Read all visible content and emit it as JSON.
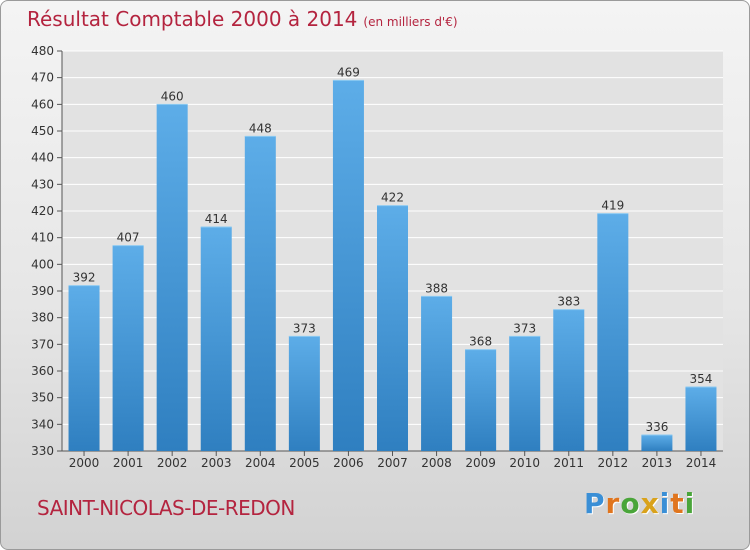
{
  "title": "Résultat Comptable 2000 à 2014",
  "subtitle": "(en milliers d'€)",
  "commune": "SAINT-NICOLAS-DE-REDON",
  "logo": {
    "text": "Proxiti",
    "letters": [
      {
        "char": "P",
        "color": "#3a8fd6"
      },
      {
        "char": "r",
        "color": "#e0751e"
      },
      {
        "char": "o",
        "color": "#4aa53a"
      },
      {
        "char": "x",
        "color": "#d9a21b"
      },
      {
        "char": "i",
        "color": "#3a8fd6"
      },
      {
        "char": "t",
        "color": "#e0751e"
      },
      {
        "char": "i",
        "color": "#4aa53a"
      }
    ]
  },
  "colors": {
    "title": "#b4243f",
    "bar_light": "#5dade8",
    "bar_dark": "#2f7fc0",
    "grid": "#ffffff",
    "text": "#333333"
  },
  "chart_data": {
    "type": "bar",
    "categories": [
      "2000",
      "2001",
      "2002",
      "2003",
      "2004",
      "2005",
      "2006",
      "2007",
      "2008",
      "2009",
      "2010",
      "2011",
      "2012",
      "2013",
      "2014"
    ],
    "values": [
      392,
      407,
      460,
      414,
      448,
      373,
      469,
      422,
      388,
      368,
      373,
      383,
      419,
      336,
      354
    ],
    "data_labels": [
      "392",
      "407",
      "460",
      "414",
      "448",
      "373",
      "469",
      "422",
      "388",
      "368",
      "373",
      "383",
      "419",
      "336",
      "354"
    ],
    "ylim": [
      330,
      480
    ],
    "yticks": [
      330,
      340,
      350,
      360,
      370,
      380,
      390,
      400,
      410,
      420,
      430,
      440,
      450,
      460,
      470,
      480
    ],
    "grid": true,
    "xlabel": "",
    "ylabel": ""
  }
}
